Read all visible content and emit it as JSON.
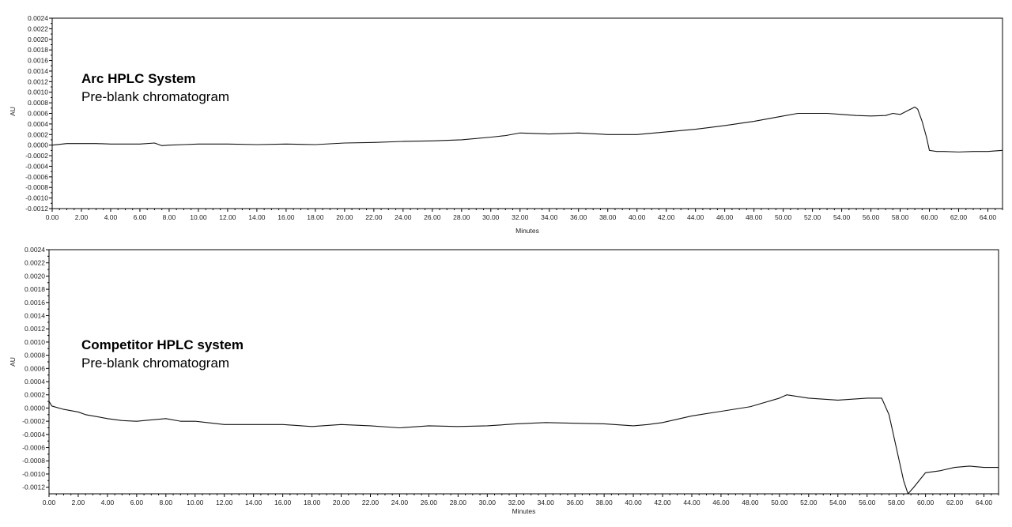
{
  "chart_data": [
    {
      "type": "line",
      "title": "Arc HPLC System",
      "subtitle": "Pre-blank chromatogram",
      "xlabel": "Minutes",
      "ylabel": "AU",
      "xlim": [
        0,
        65
      ],
      "ylim": [
        -0.0012,
        0.0024
      ],
      "xticks": [
        "0.00",
        "2.00",
        "4.00",
        "6.00",
        "8.00",
        "10.00",
        "12.00",
        "14.00",
        "16.00",
        "18.00",
        "20.00",
        "22.00",
        "24.00",
        "26.00",
        "28.00",
        "30.00",
        "32.00",
        "34.00",
        "36.00",
        "38.00",
        "40.00",
        "42.00",
        "44.00",
        "46.00",
        "48.00",
        "50.00",
        "52.00",
        "54.00",
        "56.00",
        "58.00",
        "60.00",
        "62.00",
        "64.00"
      ],
      "yticks": [
        "0.0024",
        "0.0022",
        "0.0020",
        "0.0018",
        "0.0016",
        "0.0014",
        "0.0012",
        "0.0010",
        "0.0008",
        "0.0006",
        "0.0004",
        "0.0002",
        "0.0000",
        "-0.0002",
        "-0.0004",
        "-0.0006",
        "-0.0008",
        "-0.0010",
        "-0.0012"
      ],
      "grid": false,
      "series": [
        {
          "x": [
            0,
            1,
            2,
            3,
            4,
            5,
            6,
            7,
            7.5,
            8,
            9,
            10,
            12,
            14,
            16,
            18,
            20,
            22,
            24,
            26,
            28,
            30,
            31,
            32,
            33,
            34,
            36,
            38,
            40,
            42,
            44,
            46,
            48,
            50,
            51,
            52,
            53,
            54,
            55,
            56,
            57,
            57.5,
            58,
            58.5,
            59,
            59.2,
            59.5,
            59.8,
            60,
            60.5,
            61,
            62,
            63,
            64,
            65
          ],
          "y": [
            0.0,
            3e-05,
            3e-05,
            3e-05,
            2e-05,
            2e-05,
            2e-05,
            4e-05,
            -1e-05,
            0.0,
            1e-05,
            2e-05,
            2e-05,
            1e-05,
            2e-05,
            1e-05,
            4e-05,
            5e-05,
            7e-05,
            8e-05,
            0.0001,
            0.00015,
            0.00018,
            0.00023,
            0.00022,
            0.00021,
            0.00023,
            0.0002,
            0.0002,
            0.00025,
            0.0003,
            0.00037,
            0.00045,
            0.00055,
            0.0006,
            0.0006,
            0.0006,
            0.00058,
            0.00056,
            0.00055,
            0.00056,
            0.0006,
            0.00058,
            0.00065,
            0.00072,
            0.00068,
            0.00045,
            0.00015,
            -0.0001,
            -0.00012,
            -0.00012,
            -0.00013,
            -0.00012,
            -0.00012,
            -0.0001
          ]
        }
      ]
    },
    {
      "type": "line",
      "title": "Competitor HPLC system",
      "subtitle": "Pre-blank chromatogram",
      "xlabel": "Minutes",
      "ylabel": "AU",
      "xlim": [
        0,
        65
      ],
      "ylim": [
        -0.0013,
        0.0024
      ],
      "xticks": [
        "0.00",
        "2.00",
        "4.00",
        "6.00",
        "8.00",
        "10.00",
        "12.00",
        "14.00",
        "16.00",
        "18.00",
        "20.00",
        "22.00",
        "24.00",
        "26.00",
        "28.00",
        "30.00",
        "32.00",
        "34.00",
        "36.00",
        "38.00",
        "40.00",
        "42.00",
        "44.00",
        "46.00",
        "48.00",
        "50.00",
        "52.00",
        "54.00",
        "56.00",
        "58.00",
        "60.00",
        "62.00",
        "64.00"
      ],
      "yticks": [
        "0.0024",
        "0.0022",
        "0.0020",
        "0.0018",
        "0.0016",
        "0.0014",
        "0.0012",
        "0.0010",
        "0.0008",
        "0.0006",
        "0.0004",
        "0.0002",
        "0.0000",
        "-0.0002",
        "-0.0004",
        "-0.0006",
        "-0.0008",
        "-0.0010",
        "-0.0012"
      ],
      "grid": false,
      "series": [
        {
          "x": [
            0,
            0.2,
            1,
            2,
            2.5,
            3,
            4,
            5,
            6,
            7,
            8,
            9,
            10,
            12,
            14,
            16,
            18,
            20,
            22,
            24,
            26,
            28,
            30,
            32,
            34,
            36,
            38,
            40,
            41,
            42,
            44,
            46,
            48,
            50,
            50.5,
            52,
            54,
            56,
            57,
            57.5,
            58,
            58.5,
            58.8,
            59.2,
            60,
            61,
            62,
            63,
            64,
            65
          ],
          "y": [
            0.0001,
            3e-05,
            -2e-05,
            -6e-05,
            -0.0001,
            -0.00012,
            -0.00016,
            -0.00019,
            -0.0002,
            -0.00018,
            -0.00016,
            -0.0002,
            -0.0002,
            -0.00025,
            -0.00025,
            -0.00025,
            -0.00028,
            -0.00025,
            -0.00027,
            -0.0003,
            -0.00027,
            -0.00028,
            -0.00027,
            -0.00024,
            -0.00022,
            -0.00023,
            -0.00024,
            -0.00027,
            -0.00025,
            -0.00022,
            -0.00012,
            -5e-05,
            2e-05,
            0.00015,
            0.0002,
            0.00015,
            0.00012,
            0.00015,
            0.00015,
            -0.0001,
            -0.0006,
            -0.0011,
            -0.0013,
            -0.0012,
            -0.00098,
            -0.00095,
            -0.0009,
            -0.00088,
            -0.0009,
            -0.0009
          ]
        }
      ]
    }
  ]
}
